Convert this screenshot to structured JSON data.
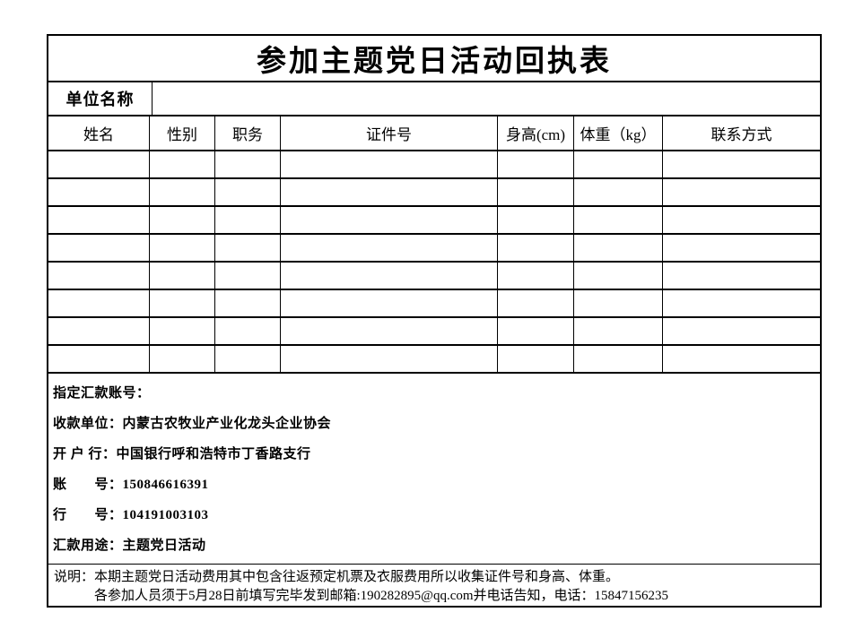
{
  "form": {
    "title": "参加主题党日活动回执表",
    "unit_label": "单位名称",
    "unit_value": "",
    "columns": [
      "姓名",
      "性别",
      "职务",
      "证件号",
      "身高(cm)",
      "体重（kg）",
      "联系方式"
    ],
    "empty_row_count": 8
  },
  "payment": {
    "lines": [
      "指定汇款账号：",
      "收款单位：内蒙古农牧业产业化龙头企业协会",
      "开 户 行：中国银行呼和浩特市丁香路支行",
      "账　　号：150846616391",
      "行　　号：104191003103",
      "汇款用途：主题党日活动"
    ]
  },
  "note": {
    "label": "说明：",
    "line1": "本期主题党日活动费用其中包含往返预定机票及衣服费用所以收集证件号和身高、体重。",
    "line2": "各参加人员须于5月28日前填写完毕发到邮箱:190282895@qq.com并电话告知，电话：15847156235"
  },
  "colors": {
    "border": "#000000",
    "background": "#ffffff",
    "text": "#000000"
  }
}
